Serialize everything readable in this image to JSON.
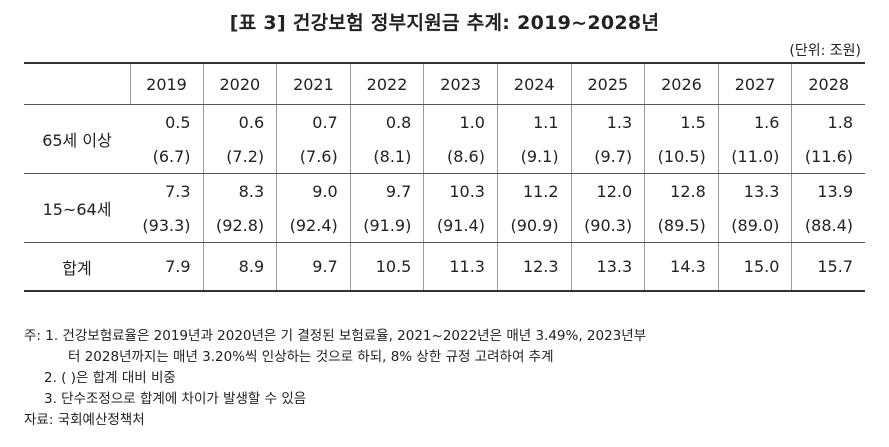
{
  "title": "[표 3] 건강보험 정부지원금 추계: 2019~2028년",
  "unit": "(단위: 조원)",
  "table": {
    "years": [
      "2019",
      "2020",
      "2021",
      "2022",
      "2023",
      "2024",
      "2025",
      "2026",
      "2027",
      "2028"
    ],
    "rows": [
      {
        "label": "65세 이상",
        "values": [
          "0.5",
          "0.6",
          "0.7",
          "0.8",
          "1.0",
          "1.1",
          "1.3",
          "1.5",
          "1.6",
          "1.8"
        ],
        "shares": [
          "(6.7)",
          "(7.2)",
          "(7.6)",
          "(8.1)",
          "(8.6)",
          "(9.1)",
          "(9.7)",
          "(10.5)",
          "(11.0)",
          "(11.6)"
        ]
      },
      {
        "label": "15~64세",
        "values": [
          "7.3",
          "8.3",
          "9.0",
          "9.7",
          "10.3",
          "11.2",
          "12.0",
          "12.8",
          "13.3",
          "13.9"
        ],
        "shares": [
          "(93.3)",
          "(92.8)",
          "(92.4)",
          "(91.9)",
          "(91.4)",
          "(90.9)",
          "(90.3)",
          "(89.5)",
          "(89.0)",
          "(88.4)"
        ]
      }
    ],
    "total": {
      "label": "합계",
      "values": [
        "7.9",
        "8.9",
        "9.7",
        "10.5",
        "11.3",
        "12.3",
        "13.3",
        "14.3",
        "15.0",
        "15.7"
      ]
    }
  },
  "notes": {
    "note1_line1": "주: 1. 건강보험료율은 2019년과 2020년은 기 결정된 보험료율, 2021~2022년은 매년 3.49%, 2023년부",
    "note1_line2": "터 2028년까지는 매년 3.20%씩 인상하는 것으로 하되, 8% 상한 규정 고려하여 추계",
    "note2": "2. (  )은 합계 대비 비중",
    "note3": "3. 단수조정으로 합계에 차이가 발생할 수 있음",
    "source": "자료: 국회예산정책처"
  }
}
